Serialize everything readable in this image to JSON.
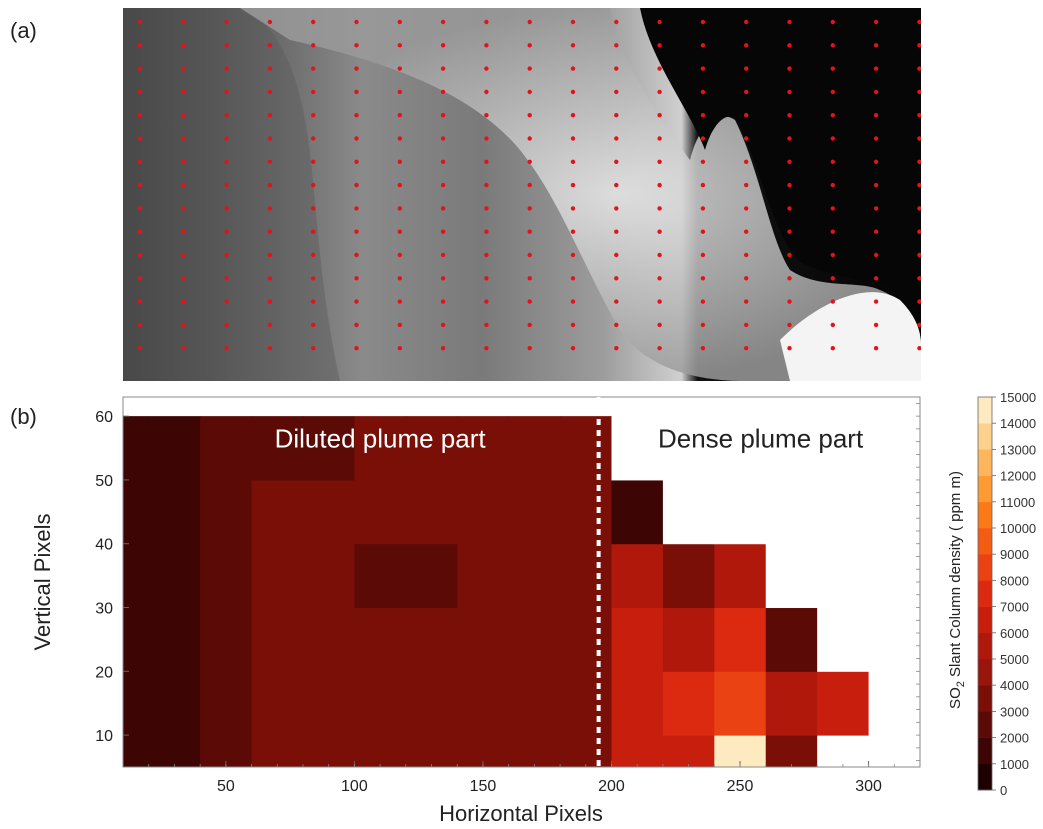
{
  "panels": {
    "a_label": "(a)",
    "b_label": "(b)"
  },
  "chart_data": [
    {
      "type": "image",
      "panel": "(a)",
      "content": "grayscale plume image overlaid with a regular grid of red sampling dots"
    },
    {
      "type": "heatmap",
      "panel": "(b)",
      "xlabel": "Horizontal Pixels",
      "ylabel": "Vertical Pixels",
      "xlim": [
        10,
        320
      ],
      "ylim": [
        5,
        63
      ],
      "xticks": [
        50,
        100,
        150,
        200,
        250,
        300
      ],
      "yticks": [
        10,
        20,
        30,
        40,
        50,
        60
      ],
      "divider_x": 195,
      "annotations": [
        {
          "text": "Diluted plume part",
          "x": 110,
          "y": 57
        },
        {
          "text": "Dense plume part",
          "x": 258,
          "y": 57
        }
      ],
      "colorbar": {
        "label": "SO2 Slant Column density ( ppm m)",
        "label_main": "SO",
        "label_sub": "2",
        "label_rest": " Slant Column density ( ppm m)",
        "ticks": [
          0,
          1000,
          2000,
          3000,
          4000,
          5000,
          6000,
          7000,
          8000,
          9000,
          10000,
          11000,
          12000,
          13000,
          14000,
          15000
        ],
        "colors": [
          "#1f0000",
          "#3d0503",
          "#5c0a06",
          "#7a0f08",
          "#99140b",
          "#b0180c",
          "#c81e0e",
          "#dc2a10",
          "#ea4212",
          "#f45c14",
          "#fa7a18",
          "#fd9a34",
          "#fdb65e",
          "#fdd08c",
          "#feeac0"
        ]
      },
      "grid": {
        "x": [
          10,
          30,
          50,
          70,
          90,
          110,
          130,
          150,
          170,
          190,
          210,
          230,
          250,
          270,
          290,
          310
        ],
        "y": [
          5,
          15,
          25,
          35,
          45,
          55
        ],
        "values": [
          [
            1500,
            1800,
            2500,
            3000,
            3200,
            3000,
            3000,
            3200,
            3000,
            3000,
            6500,
            6500,
            14000,
            3000,
            -1,
            -1
          ],
          [
            1500,
            1800,
            2500,
            3000,
            3200,
            3500,
            3500,
            3200,
            3000,
            3000,
            6000,
            7000,
            8000,
            5000,
            6000,
            -1
          ],
          [
            1500,
            1800,
            2500,
            3000,
            3200,
            3200,
            3200,
            3200,
            3200,
            3200,
            6000,
            5000,
            7000,
            2000,
            -1,
            -1
          ],
          [
            1500,
            1800,
            2500,
            3000,
            3200,
            2000,
            2000,
            3200,
            3500,
            3500,
            5000,
            3000,
            5000,
            -1,
            -1,
            -1
          ],
          [
            1500,
            1800,
            2500,
            3000,
            3000,
            3000,
            3200,
            3200,
            3500,
            3500,
            1500,
            -1,
            -1,
            -1,
            -1,
            -1
          ],
          [
            1500,
            1800,
            2200,
            2500,
            2800,
            3000,
            3000,
            3200,
            3500,
            3500,
            -1,
            -1,
            -1,
            -1,
            -1,
            -1
          ]
        ]
      }
    }
  ]
}
